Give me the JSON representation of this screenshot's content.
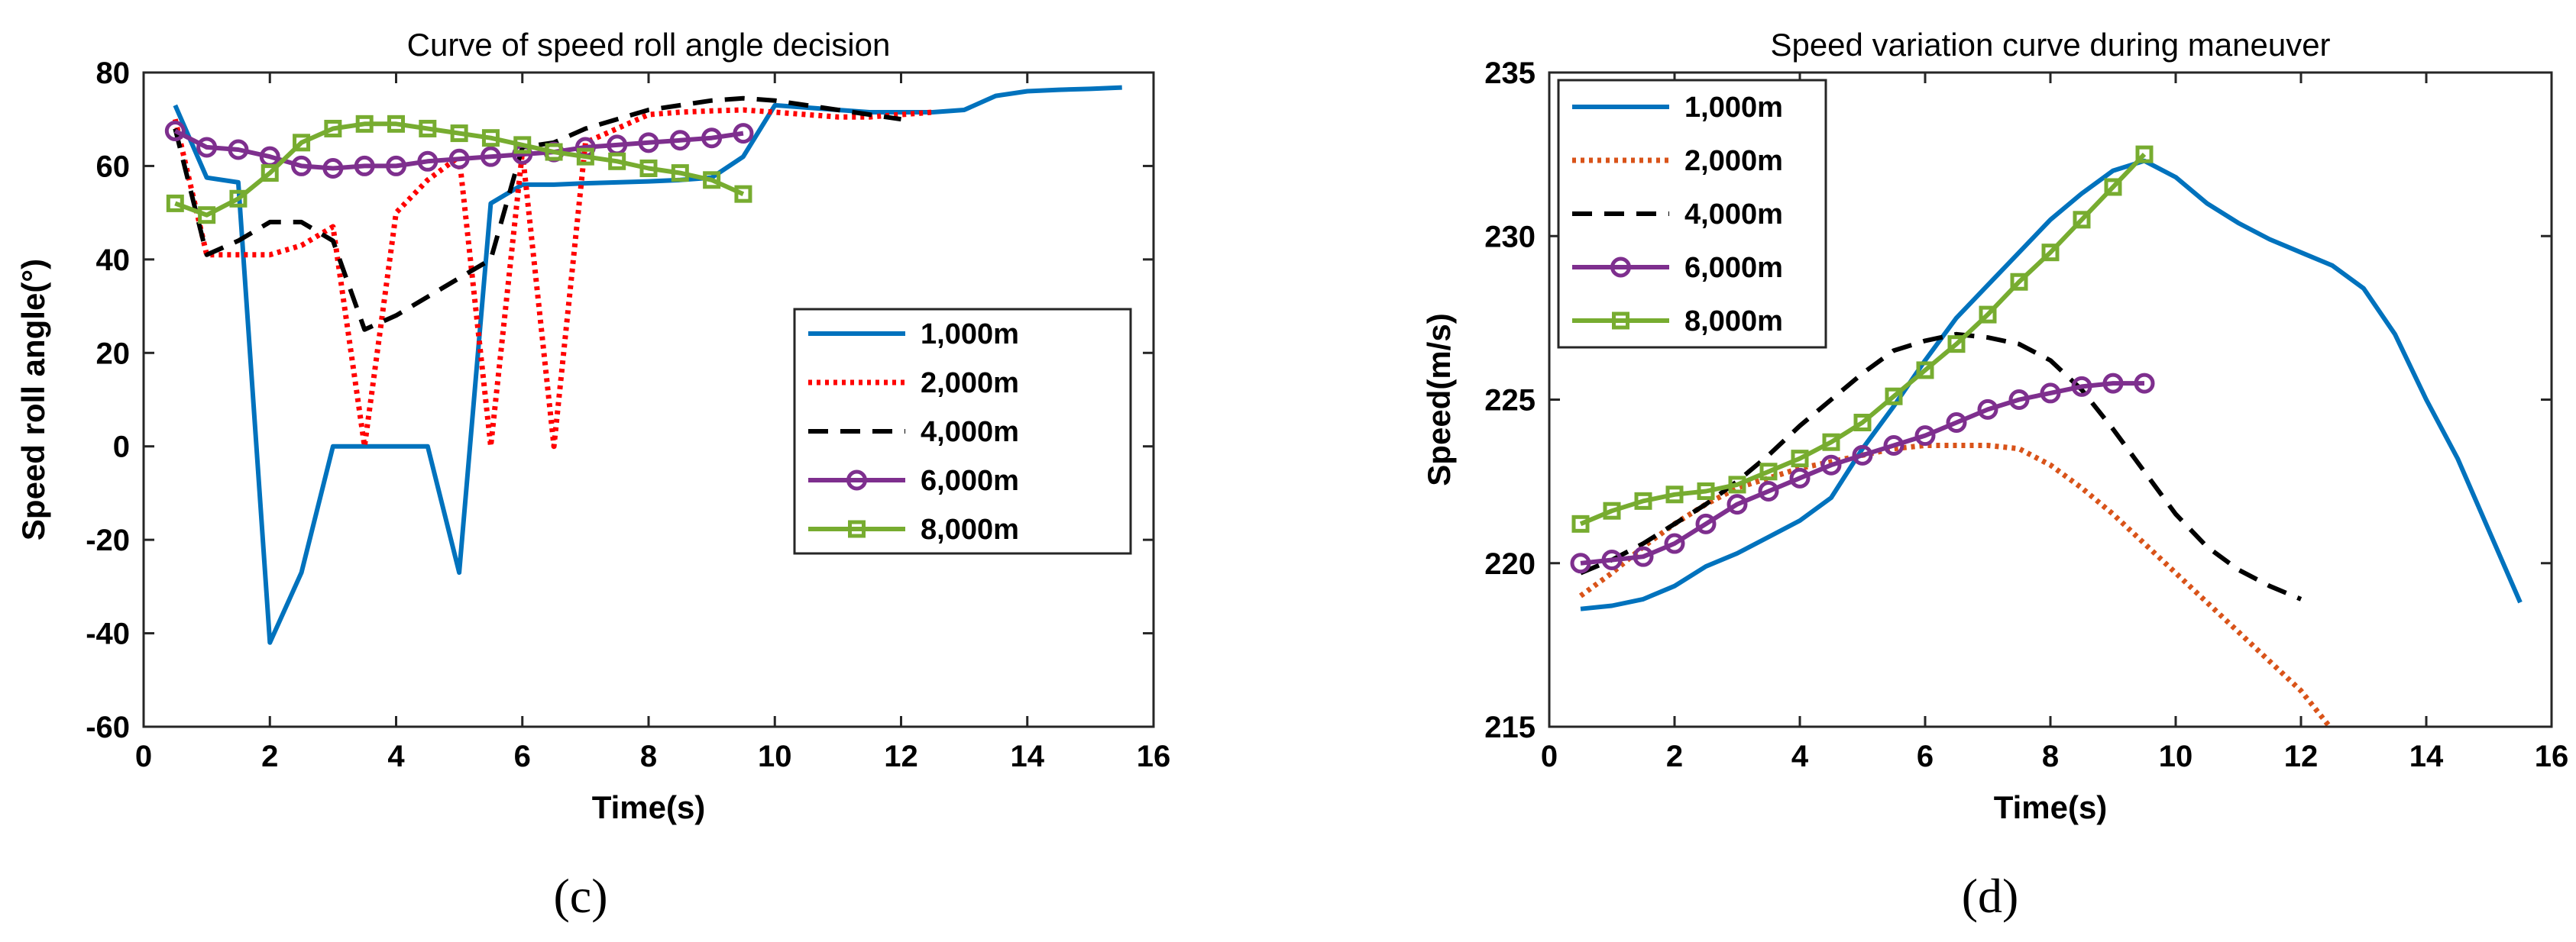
{
  "chart_data": [
    {
      "type": "line",
      "title": "Curve of speed roll angle decision",
      "xlabel": "Time(s)",
      "ylabel": "Speed roll angle(°)",
      "xlim": [
        0,
        16
      ],
      "ylim": [
        -60,
        80
      ],
      "xticks": [
        "0",
        "2",
        "4",
        "6",
        "8",
        "10",
        "12",
        "14",
        "16"
      ],
      "yticks": [
        "-60",
        "-40",
        "-20",
        "0",
        "20",
        "40",
        "60",
        "80"
      ],
      "caption": "(c)",
      "legend_position": "center-right",
      "series": [
        {
          "name": "1,000m",
          "color": "#0072BD",
          "style": "solid",
          "marker": "none",
          "x": [
            0.5,
            1,
            1.5,
            2,
            2.5,
            3,
            3.5,
            4,
            4.5,
            5,
            5.5,
            6,
            6.5,
            7,
            7.5,
            8,
            8.5,
            9,
            9.5,
            10,
            10.5,
            11,
            11.5,
            12,
            12.5,
            13,
            13.5,
            14,
            14.5,
            15,
            15.5
          ],
          "y": [
            73,
            57.5,
            56.5,
            -42,
            -27,
            0,
            0,
            0,
            0,
            -27,
            52,
            56,
            56,
            56.3,
            56.5,
            56.7,
            57,
            57.5,
            62,
            73,
            72.5,
            72,
            71.5,
            71.5,
            71.5,
            72,
            75,
            76,
            76.3,
            76.5,
            76.8
          ]
        },
        {
          "name": "2,000m",
          "color": "#FF0000",
          "style": "dotted",
          "marker": "none",
          "x": [
            0.5,
            1,
            1.5,
            2,
            2.5,
            3,
            3.5,
            4,
            4.5,
            5,
            5.5,
            6,
            6.5,
            7,
            7.5,
            8,
            8.5,
            9,
            9.5,
            10,
            10.5,
            11,
            11.5,
            12,
            12.5
          ],
          "y": [
            70,
            41,
            41,
            41,
            43,
            47,
            0,
            50,
            57,
            62,
            0,
            63,
            0,
            65,
            68,
            71,
            71.5,
            71.8,
            72,
            71.5,
            71,
            70.5,
            70.5,
            71,
            71.5
          ]
        },
        {
          "name": "4,000m",
          "color": "#000000",
          "style": "dashed",
          "marker": "none",
          "x": [
            0.5,
            1,
            1.5,
            2,
            2.5,
            3,
            3.5,
            4,
            4.5,
            5,
            5.5,
            6,
            6.5,
            7,
            7.5,
            8,
            8.5,
            9,
            9.5,
            10,
            10.5,
            11,
            11.5,
            12
          ],
          "y": [
            68,
            41,
            44,
            48,
            48,
            44,
            25,
            28,
            32,
            36,
            40,
            64,
            65,
            68,
            70,
            72,
            73,
            74,
            74.5,
            74,
            73,
            72,
            71,
            70
          ]
        },
        {
          "name": "6,000m",
          "color": "#7E2F8E",
          "style": "solid",
          "marker": "circle",
          "x": [
            0.5,
            1,
            1.5,
            2,
            2.5,
            3,
            3.5,
            4,
            4.5,
            5,
            5.5,
            6,
            6.5,
            7,
            7.5,
            8,
            8.5,
            9,
            9.5
          ],
          "y": [
            67.5,
            64,
            63.5,
            62,
            60,
            59.5,
            60,
            60,
            61,
            61.5,
            62,
            62.5,
            63,
            64,
            64.5,
            65,
            65.5,
            66,
            67
          ]
        },
        {
          "name": "8,000m",
          "color": "#77AC30",
          "style": "solid",
          "marker": "square",
          "x": [
            0.5,
            1,
            1.5,
            2,
            2.5,
            3,
            3.5,
            4,
            4.5,
            5,
            5.5,
            6,
            6.5,
            7,
            7.5,
            8,
            8.5,
            9,
            9.5
          ],
          "y": [
            52,
            49.5,
            53,
            58.5,
            65,
            68,
            69,
            69,
            68,
            67,
            66,
            64.5,
            63,
            62,
            61,
            59.5,
            58.5,
            57,
            54
          ]
        }
      ]
    },
    {
      "type": "line",
      "title": "Speed variation curve during maneuver",
      "xlabel": "Time(s)",
      "ylabel": "Speed(m/s)",
      "xlim": [
        0,
        16
      ],
      "ylim": [
        215,
        235
      ],
      "xticks": [
        "0",
        "2",
        "4",
        "6",
        "8",
        "10",
        "12",
        "14",
        "16"
      ],
      "yticks": [
        "215",
        "220",
        "225",
        "230",
        "235"
      ],
      "caption": "(d)",
      "legend_position": "top-left",
      "series": [
        {
          "name": "1,000m",
          "color": "#0072BD",
          "style": "solid",
          "marker": "none",
          "x": [
            0.5,
            1,
            1.5,
            2,
            2.5,
            3,
            3.5,
            4,
            4.5,
            5,
            5.5,
            6,
            6.5,
            7,
            7.5,
            8,
            8.5,
            9,
            9.5,
            10,
            10.5,
            11,
            11.5,
            12,
            12.5,
            13,
            13.5,
            14,
            14.5,
            15,
            15.5
          ],
          "y": [
            218.6,
            218.7,
            218.9,
            219.3,
            219.9,
            220.3,
            220.8,
            221.3,
            222.0,
            223.5,
            224.8,
            226.2,
            227.5,
            228.5,
            229.5,
            230.5,
            231.3,
            232.0,
            232.3,
            231.8,
            231.0,
            230.4,
            229.9,
            229.5,
            229.1,
            228.4,
            227.0,
            225.0,
            223.2,
            221.0,
            218.8
          ]
        },
        {
          "name": "2,000m",
          "color": "#D95319",
          "style": "dotted",
          "marker": "none",
          "x": [
            0.5,
            1,
            1.5,
            2,
            2.5,
            3,
            3.5,
            4,
            4.5,
            5,
            5.5,
            6,
            6.5,
            7,
            7.5,
            8,
            8.5,
            9,
            9.5,
            10,
            10.5,
            11,
            11.5,
            12,
            12.5
          ],
          "y": [
            219.0,
            219.7,
            220.5,
            221.2,
            221.8,
            222.3,
            222.6,
            222.9,
            223.1,
            223.3,
            223.5,
            223.6,
            223.6,
            223.6,
            223.5,
            223.0,
            222.3,
            221.5,
            220.6,
            219.7,
            218.8,
            217.9,
            217.0,
            216.1,
            214.9
          ]
        },
        {
          "name": "4,000m",
          "color": "#000000",
          "style": "dashed",
          "marker": "none",
          "x": [
            0.5,
            1,
            1.5,
            2,
            2.5,
            3,
            3.5,
            4,
            4.5,
            5,
            5.5,
            6,
            6.5,
            7,
            7.5,
            8,
            8.5,
            9,
            9.5,
            10,
            10.5,
            11,
            11.5,
            12
          ],
          "y": [
            219.7,
            220.1,
            220.6,
            221.2,
            221.8,
            222.5,
            223.3,
            224.2,
            225.0,
            225.8,
            226.5,
            226.8,
            227.0,
            226.9,
            226.7,
            226.2,
            225.3,
            224.1,
            222.8,
            221.5,
            220.5,
            219.8,
            219.3,
            218.9
          ]
        },
        {
          "name": "6,000m",
          "color": "#7E2F8E",
          "style": "solid",
          "marker": "circle",
          "x": [
            0.5,
            1,
            1.5,
            2,
            2.5,
            3,
            3.5,
            4,
            4.5,
            5,
            5.5,
            6,
            6.5,
            7,
            7.5,
            8,
            8.5,
            9,
            9.5
          ],
          "y": [
            220.0,
            220.1,
            220.2,
            220.6,
            221.2,
            221.8,
            222.2,
            222.6,
            223.0,
            223.3,
            223.6,
            223.9,
            224.3,
            224.7,
            225.0,
            225.2,
            225.4,
            225.5,
            225.5
          ]
        },
        {
          "name": "8,000m",
          "color": "#77AC30",
          "style": "solid",
          "marker": "square",
          "x": [
            0.5,
            1,
            1.5,
            2,
            2.5,
            3,
            3.5,
            4,
            4.5,
            5,
            5.5,
            6,
            6.5,
            7,
            7.5,
            8,
            8.5,
            9,
            9.5
          ],
          "y": [
            221.2,
            221.6,
            221.9,
            222.1,
            222.2,
            222.4,
            222.8,
            223.2,
            223.7,
            224.3,
            225.1,
            225.9,
            226.7,
            227.6,
            228.6,
            229.5,
            230.5,
            231.5,
            232.5
          ]
        }
      ]
    }
  ]
}
